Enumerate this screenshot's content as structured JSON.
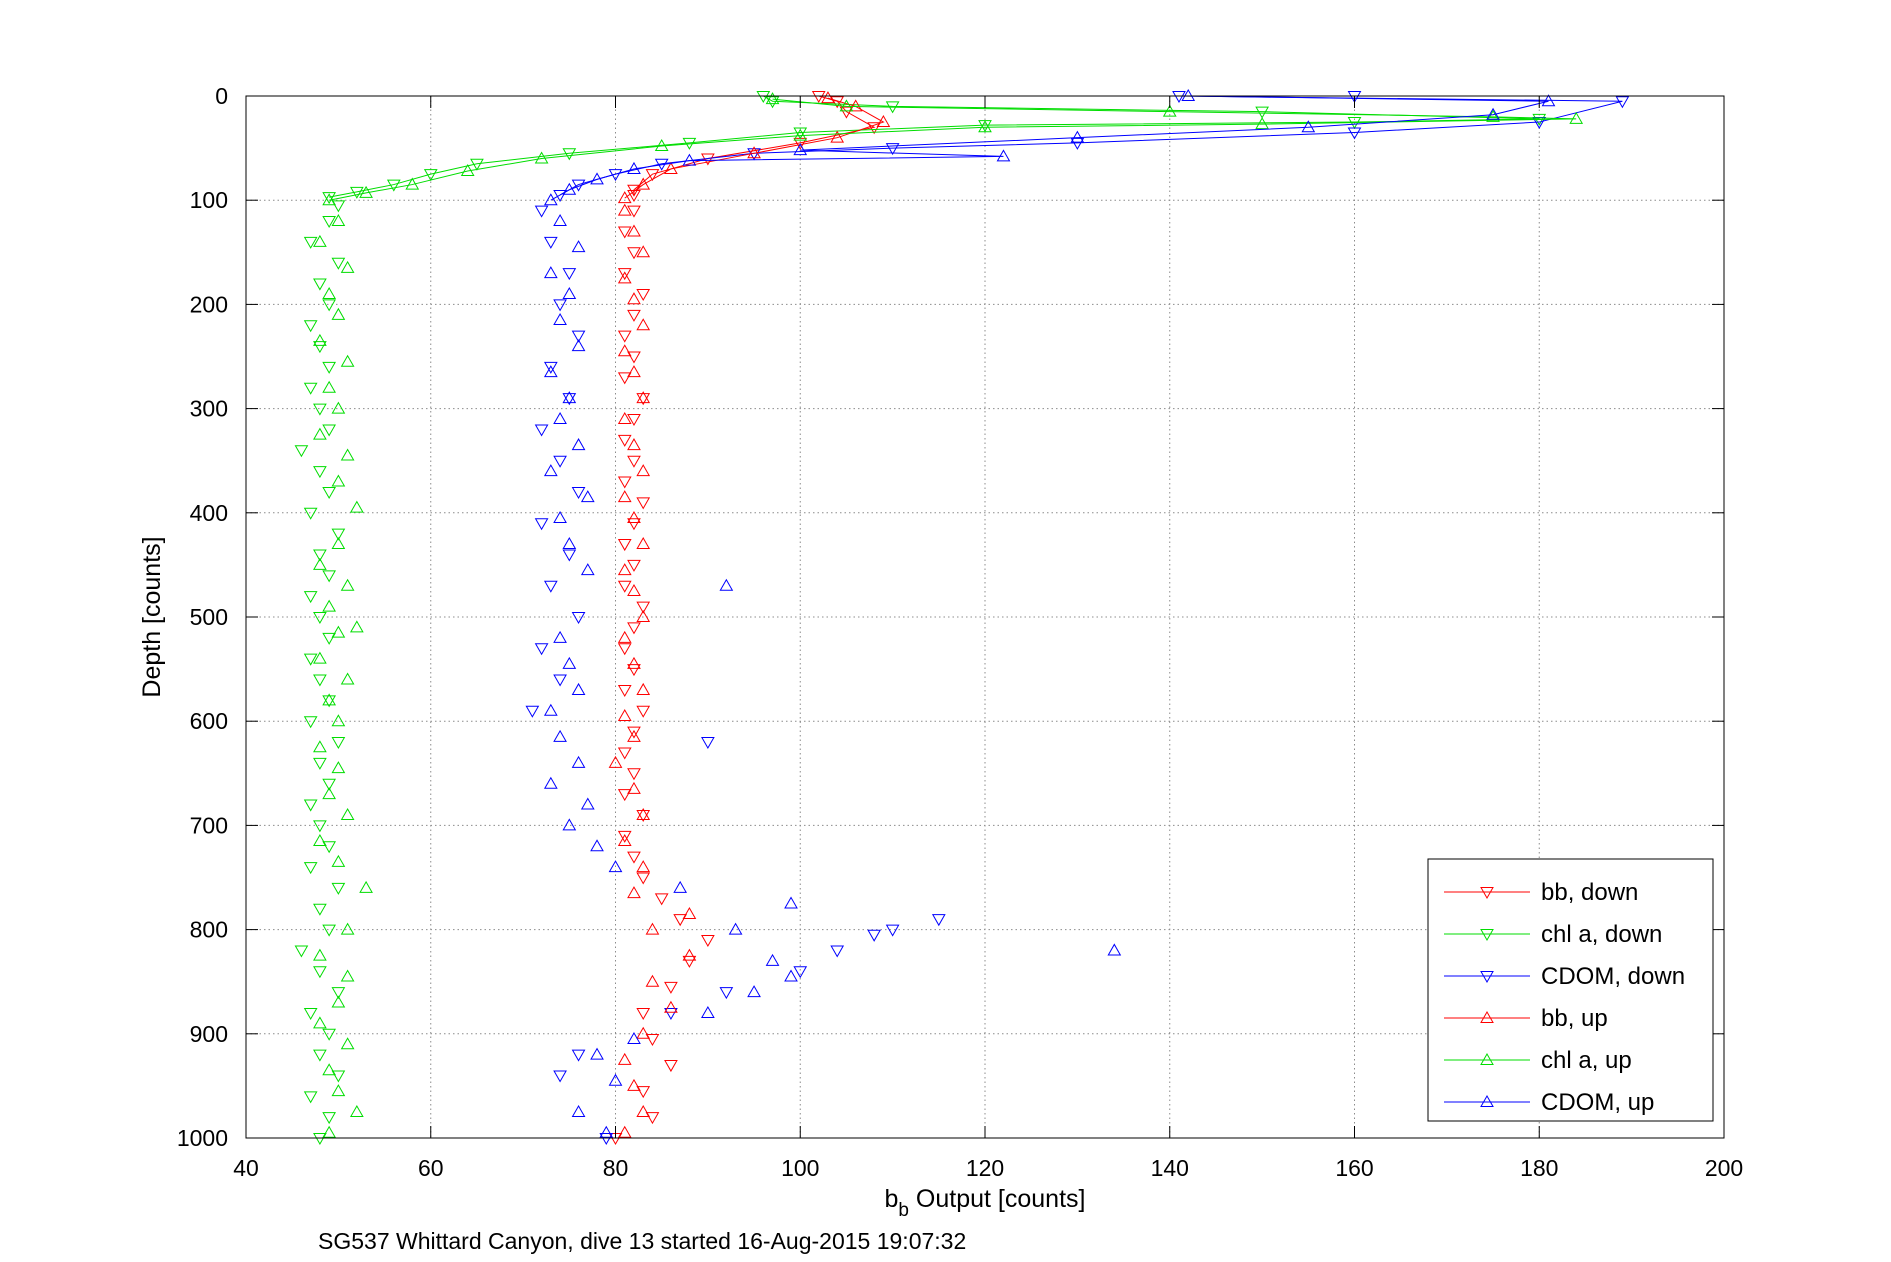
{
  "chart_data": {
    "type": "scatter",
    "title": "",
    "xlabel_main": "b",
    "xlabel_sub": "b",
    "xlabel_rest": " Output [counts]",
    "ylabel": "Depth [counts]",
    "caption": "SG537 Whittard Canyon, dive 13 started 16-Aug-2015 19:07:32",
    "xlim": [
      40,
      200
    ],
    "ylim": [
      0,
      1000
    ],
    "y_reversed": true,
    "x_ticks": [
      "40",
      "60",
      "80",
      "100",
      "120",
      "140",
      "160",
      "180",
      "200"
    ],
    "y_ticks": [
      "0",
      "100",
      "200",
      "300",
      "400",
      "500",
      "600",
      "700",
      "800",
      "900",
      "1000"
    ],
    "grid": true,
    "legend_position": "bottom-right",
    "series": [
      {
        "name": "bb, down",
        "color": "#ff0000",
        "marker": "triangle-down",
        "connected_top_m": 100,
        "points": [
          [
            80,
            1000
          ],
          [
            84,
            980
          ],
          [
            83,
            955
          ],
          [
            86,
            930
          ],
          [
            84,
            905
          ],
          [
            83,
            880
          ],
          [
            86,
            855
          ],
          [
            88,
            830
          ],
          [
            90,
            810
          ],
          [
            87,
            790
          ],
          [
            85,
            770
          ],
          [
            83,
            750
          ],
          [
            82,
            730
          ],
          [
            81,
            710
          ],
          [
            83,
            690
          ],
          [
            81,
            670
          ],
          [
            82,
            650
          ],
          [
            81,
            630
          ],
          [
            82,
            610
          ],
          [
            83,
            590
          ],
          [
            81,
            570
          ],
          [
            82,
            550
          ],
          [
            81,
            530
          ],
          [
            82,
            510
          ],
          [
            83,
            490
          ],
          [
            81,
            470
          ],
          [
            82,
            450
          ],
          [
            81,
            430
          ],
          [
            82,
            410
          ],
          [
            83,
            390
          ],
          [
            81,
            370
          ],
          [
            82,
            350
          ],
          [
            81,
            330
          ],
          [
            82,
            310
          ],
          [
            83,
            290
          ],
          [
            81,
            270
          ],
          [
            82,
            250
          ],
          [
            81,
            230
          ],
          [
            82,
            210
          ],
          [
            83,
            190
          ],
          [
            81,
            170
          ],
          [
            82,
            150
          ],
          [
            81,
            130
          ],
          [
            82,
            110
          ],
          [
            82,
            95
          ],
          [
            82,
            90
          ],
          [
            84,
            75
          ],
          [
            90,
            60
          ],
          [
            100,
            45
          ],
          [
            108,
            30
          ],
          [
            105,
            15
          ],
          [
            104,
            5
          ],
          [
            102,
            0
          ]
        ]
      },
      {
        "name": "chl a, down",
        "color": "#00dd00",
        "marker": "triangle-down",
        "connected_top_m": 100,
        "points": [
          [
            48,
            1000
          ],
          [
            49,
            980
          ],
          [
            47,
            960
          ],
          [
            50,
            940
          ],
          [
            48,
            920
          ],
          [
            49,
            900
          ],
          [
            47,
            880
          ],
          [
            50,
            860
          ],
          [
            48,
            840
          ],
          [
            46,
            820
          ],
          [
            49,
            800
          ],
          [
            48,
            780
          ],
          [
            50,
            760
          ],
          [
            47,
            740
          ],
          [
            49,
            720
          ],
          [
            48,
            700
          ],
          [
            47,
            680
          ],
          [
            49,
            660
          ],
          [
            48,
            640
          ],
          [
            50,
            620
          ],
          [
            47,
            600
          ],
          [
            49,
            580
          ],
          [
            48,
            560
          ],
          [
            47,
            540
          ],
          [
            49,
            520
          ],
          [
            48,
            500
          ],
          [
            47,
            480
          ],
          [
            49,
            460
          ],
          [
            48,
            440
          ],
          [
            50,
            420
          ],
          [
            47,
            400
          ],
          [
            49,
            380
          ],
          [
            48,
            360
          ],
          [
            46,
            340
          ],
          [
            49,
            320
          ],
          [
            48,
            300
          ],
          [
            47,
            280
          ],
          [
            49,
            260
          ],
          [
            48,
            240
          ],
          [
            47,
            220
          ],
          [
            49,
            200
          ],
          [
            48,
            180
          ],
          [
            50,
            160
          ],
          [
            47,
            140
          ],
          [
            49,
            120
          ],
          [
            50,
            105
          ],
          [
            49,
            97
          ],
          [
            52,
            92
          ],
          [
            56,
            85
          ],
          [
            60,
            75
          ],
          [
            65,
            65
          ],
          [
            75,
            55
          ],
          [
            88,
            45
          ],
          [
            100,
            35
          ],
          [
            120,
            28
          ],
          [
            160,
            25
          ],
          [
            180,
            22
          ],
          [
            150,
            15
          ],
          [
            110,
            10
          ],
          [
            97,
            5
          ],
          [
            96,
            0
          ]
        ]
      },
      {
        "name": "CDOM, down",
        "color": "#0000ff",
        "marker": "triangle-down",
        "connected_top_m": 100,
        "points": [
          [
            79,
            1000
          ],
          [
            74,
            940
          ],
          [
            76,
            920
          ],
          [
            86,
            880
          ],
          [
            92,
            860
          ],
          [
            100,
            840
          ],
          [
            104,
            820
          ],
          [
            108,
            805
          ],
          [
            110,
            800
          ],
          [
            115,
            790
          ],
          [
            90,
            620
          ],
          [
            71,
            590
          ],
          [
            74,
            560
          ],
          [
            72,
            530
          ],
          [
            76,
            500
          ],
          [
            73,
            470
          ],
          [
            75,
            440
          ],
          [
            72,
            410
          ],
          [
            76,
            380
          ],
          [
            74,
            350
          ],
          [
            72,
            320
          ],
          [
            75,
            290
          ],
          [
            73,
            260
          ],
          [
            76,
            230
          ],
          [
            74,
            200
          ],
          [
            75,
            170
          ],
          [
            73,
            140
          ],
          [
            72,
            110
          ],
          [
            74,
            95
          ],
          [
            76,
            85
          ],
          [
            80,
            75
          ],
          [
            85,
            65
          ],
          [
            95,
            55
          ],
          [
            110,
            50
          ],
          [
            130,
            45
          ],
          [
            160,
            35
          ],
          [
            180,
            25
          ],
          [
            189,
            5
          ],
          [
            160,
            0
          ],
          [
            141,
            0
          ]
        ]
      },
      {
        "name": "bb, up",
        "color": "#ff0000",
        "marker": "triangle-up",
        "connected_top_m": 100,
        "points": [
          [
            81,
            995
          ],
          [
            83,
            975
          ],
          [
            82,
            950
          ],
          [
            81,
            925
          ],
          [
            83,
            900
          ],
          [
            86,
            875
          ],
          [
            84,
            850
          ],
          [
            88,
            825
          ],
          [
            84,
            800
          ],
          [
            88,
            785
          ],
          [
            82,
            765
          ],
          [
            83,
            740
          ],
          [
            81,
            715
          ],
          [
            83,
            690
          ],
          [
            82,
            665
          ],
          [
            80,
            640
          ],
          [
            82,
            615
          ],
          [
            81,
            595
          ],
          [
            83,
            570
          ],
          [
            82,
            545
          ],
          [
            81,
            520
          ],
          [
            83,
            500
          ],
          [
            82,
            475
          ],
          [
            81,
            455
          ],
          [
            83,
            430
          ],
          [
            82,
            405
          ],
          [
            81,
            385
          ],
          [
            83,
            360
          ],
          [
            82,
            335
          ],
          [
            81,
            310
          ],
          [
            83,
            290
          ],
          [
            82,
            265
          ],
          [
            81,
            245
          ],
          [
            83,
            220
          ],
          [
            82,
            195
          ],
          [
            81,
            175
          ],
          [
            83,
            150
          ],
          [
            82,
            130
          ],
          [
            81,
            110
          ],
          [
            81,
            98
          ],
          [
            83,
            85
          ],
          [
            86,
            70
          ],
          [
            95,
            55
          ],
          [
            104,
            40
          ],
          [
            109,
            25
          ],
          [
            106,
            10
          ],
          [
            103,
            2
          ]
        ]
      },
      {
        "name": "chl a, up",
        "color": "#00dd00",
        "marker": "triangle-up",
        "connected_top_m": 100,
        "points": [
          [
            49,
            995
          ],
          [
            52,
            975
          ],
          [
            50,
            955
          ],
          [
            49,
            935
          ],
          [
            51,
            910
          ],
          [
            48,
            890
          ],
          [
            50,
            870
          ],
          [
            51,
            845
          ],
          [
            48,
            825
          ],
          [
            51,
            800
          ],
          [
            53,
            760
          ],
          [
            50,
            735
          ],
          [
            48,
            715
          ],
          [
            51,
            690
          ],
          [
            49,
            670
          ],
          [
            50,
            645
          ],
          [
            48,
            625
          ],
          [
            50,
            600
          ],
          [
            49,
            580
          ],
          [
            51,
            560
          ],
          [
            48,
            540
          ],
          [
            50,
            515
          ],
          [
            52,
            510
          ],
          [
            49,
            490
          ],
          [
            51,
            470
          ],
          [
            48,
            450
          ],
          [
            50,
            430
          ],
          [
            52,
            395
          ],
          [
            50,
            370
          ],
          [
            51,
            345
          ],
          [
            48,
            325
          ],
          [
            50,
            300
          ],
          [
            49,
            280
          ],
          [
            51,
            255
          ],
          [
            48,
            235
          ],
          [
            50,
            210
          ],
          [
            49,
            190
          ],
          [
            51,
            165
          ],
          [
            48,
            140
          ],
          [
            50,
            120
          ],
          [
            49,
            100
          ],
          [
            53,
            93
          ],
          [
            58,
            85
          ],
          [
            64,
            72
          ],
          [
            72,
            60
          ],
          [
            85,
            48
          ],
          [
            100,
            38
          ],
          [
            120,
            30
          ],
          [
            150,
            27
          ],
          [
            184,
            22
          ],
          [
            175,
            20
          ],
          [
            140,
            15
          ],
          [
            105,
            10
          ],
          [
            97,
            3
          ]
        ]
      },
      {
        "name": "CDOM, up",
        "color": "#0000ff",
        "marker": "triangle-up",
        "connected_top_m": 100,
        "points": [
          [
            79,
            995
          ],
          [
            76,
            975
          ],
          [
            80,
            945
          ],
          [
            78,
            920
          ],
          [
            82,
            905
          ],
          [
            90,
            880
          ],
          [
            95,
            860
          ],
          [
            99,
            845
          ],
          [
            97,
            830
          ],
          [
            134,
            820
          ],
          [
            93,
            800
          ],
          [
            99,
            775
          ],
          [
            87,
            760
          ],
          [
            80,
            740
          ],
          [
            78,
            720
          ],
          [
            75,
            700
          ],
          [
            77,
            680
          ],
          [
            73,
            660
          ],
          [
            76,
            640
          ],
          [
            74,
            615
          ],
          [
            73,
            590
          ],
          [
            76,
            570
          ],
          [
            75,
            545
          ],
          [
            74,
            520
          ],
          [
            92,
            470
          ],
          [
            77,
            455
          ],
          [
            75,
            430
          ],
          [
            74,
            405
          ],
          [
            77,
            385
          ],
          [
            73,
            360
          ],
          [
            76,
            335
          ],
          [
            74,
            310
          ],
          [
            75,
            290
          ],
          [
            73,
            265
          ],
          [
            76,
            240
          ],
          [
            74,
            215
          ],
          [
            75,
            190
          ],
          [
            73,
            170
          ],
          [
            76,
            145
          ],
          [
            74,
            120
          ],
          [
            73,
            100
          ],
          [
            75,
            90
          ],
          [
            78,
            80
          ],
          [
            82,
            70
          ],
          [
            88,
            62
          ],
          [
            100,
            52
          ],
          [
            122,
            58
          ],
          [
            130,
            40
          ],
          [
            155,
            30
          ],
          [
            175,
            18
          ],
          [
            181,
            5
          ],
          [
            142,
            0
          ]
        ]
      }
    ]
  }
}
